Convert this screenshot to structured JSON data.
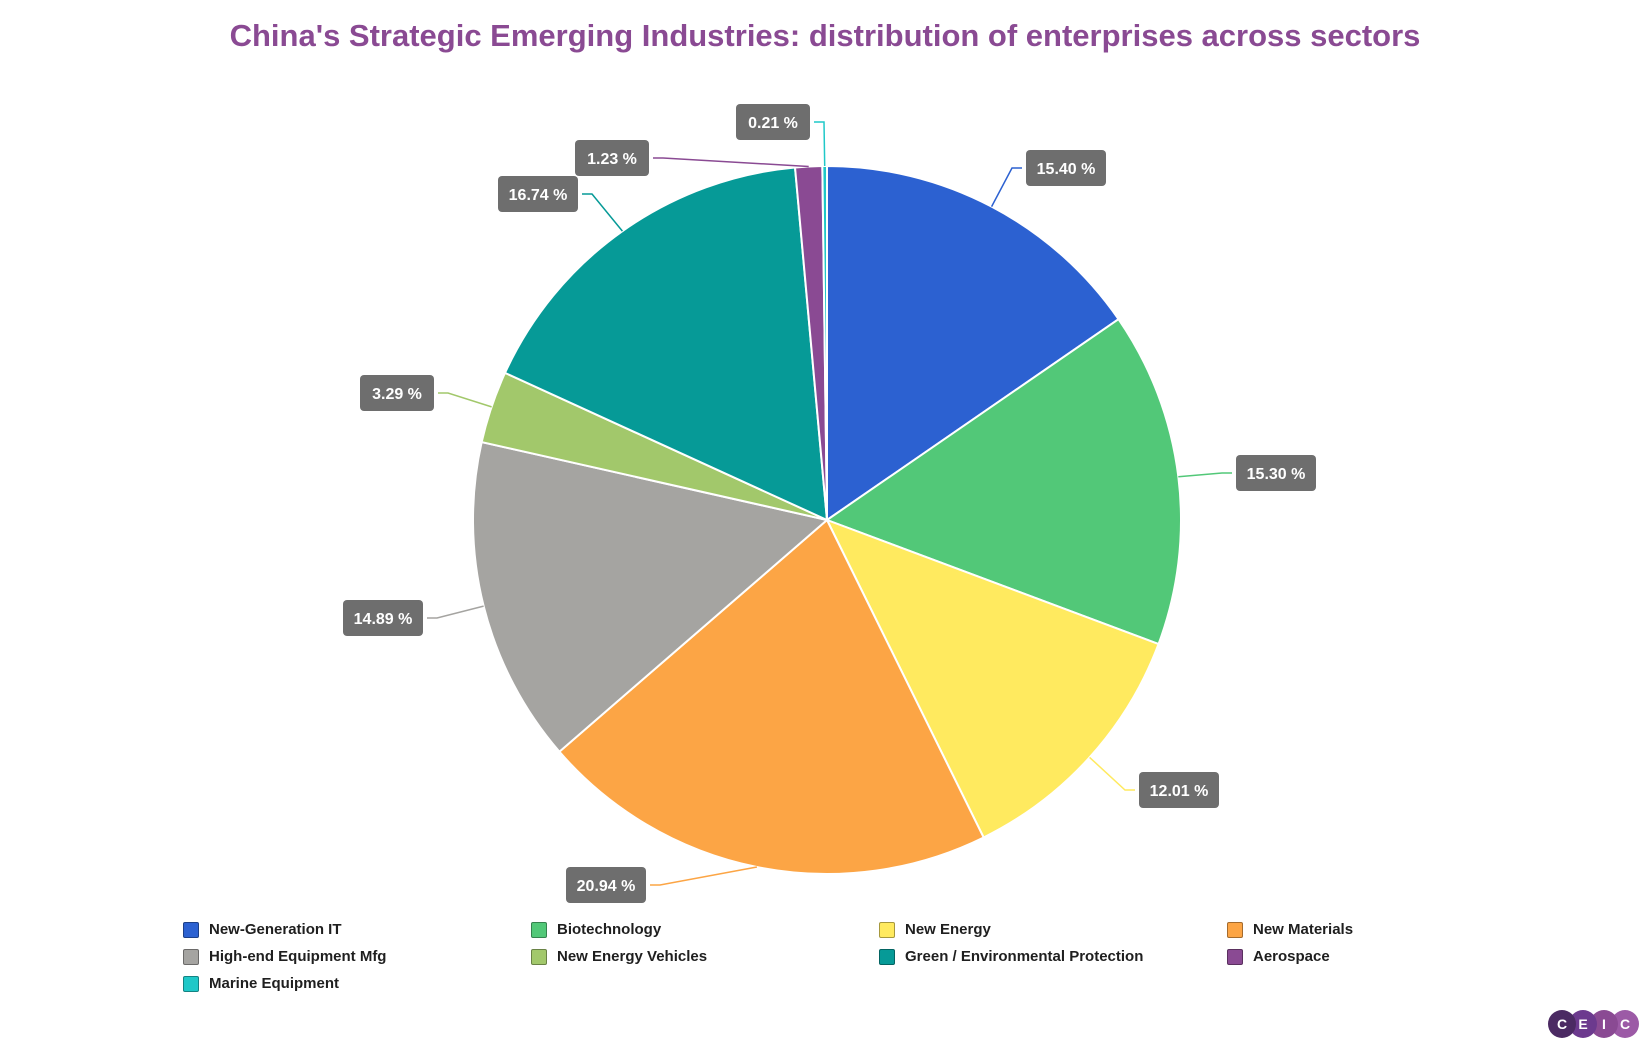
{
  "chart_data": {
    "type": "pie",
    "title": "China's Strategic Emerging Industries: distribution of enterprises across sectors",
    "unit": "%",
    "slices": [
      {
        "name": "New-Generation IT",
        "value": 15.4,
        "label": "15.40 %",
        "color": "#2c61d1"
      },
      {
        "name": "Biotechnology",
        "value": 15.3,
        "label": "15.30 %",
        "color": "#52c878"
      },
      {
        "name": "New Energy",
        "value": 12.01,
        "label": "12.01 %",
        "color": "#ffea5f"
      },
      {
        "name": "New Materials",
        "value": 20.94,
        "label": "20.94 %",
        "color": "#fca545"
      },
      {
        "name": "High-end Equipment Mfg",
        "value": 14.89,
        "label": "14.89 %",
        "color": "#a5a4a1"
      },
      {
        "name": "New Energy Vehicles",
        "value": 3.29,
        "label": "3.29 %",
        "color": "#a2c86b"
      },
      {
        "name": "Green / Environmental Protection",
        "value": 16.74,
        "label": "16.74 %",
        "color": "#069a97"
      },
      {
        "name": "Aerospace",
        "value": 1.23,
        "label": "1.23 %",
        "color": "#8a4a93"
      },
      {
        "name": "Marine Equipment",
        "value": 0.21,
        "label": "0.21 %",
        "color": "#1fc8c8"
      }
    ],
    "start_angle": "12 o'clock",
    "direction": "clockwise",
    "legend": {
      "position": "bottom"
    }
  },
  "branding": {
    "logo_letters": [
      "C",
      "E",
      "I",
      "C"
    ],
    "logo_colors": [
      "#4b2a63",
      "#6c3a8e",
      "#8a4a93",
      "#9c5aa6"
    ]
  }
}
